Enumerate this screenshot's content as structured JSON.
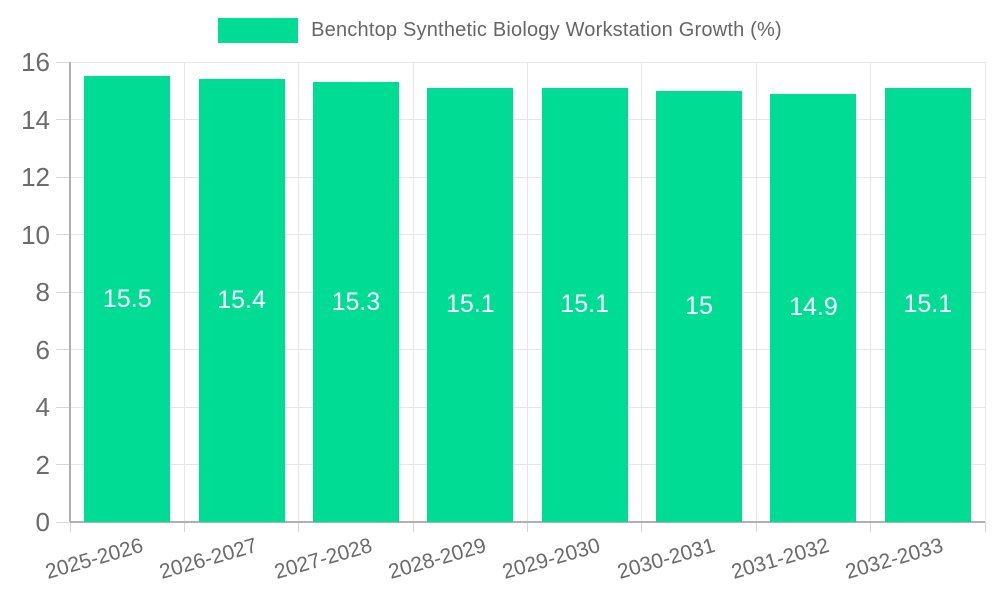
{
  "chart_data": {
    "type": "bar",
    "title": "",
    "legend": "Benchtop Synthetic Biology Workstation Growth (%)",
    "legend_position": "top",
    "categories": [
      "2025-2026",
      "2026-2027",
      "2027-2028",
      "2028-2029",
      "2029-2030",
      "2030-2031",
      "2031-2032",
      "2032-2033"
    ],
    "values": [
      15.5,
      15.4,
      15.3,
      15.1,
      15.1,
      15,
      14.9,
      15.1
    ],
    "value_labels": [
      "15.5",
      "15.4",
      "15.3",
      "15.1",
      "15.1",
      "15",
      "14.9",
      "15.1"
    ],
    "value_label_position": "inside-center",
    "xlabel": "",
    "ylabel": "",
    "ylim": [
      0,
      16
    ],
    "yticks": [
      0,
      2,
      4,
      6,
      8,
      10,
      12,
      14,
      16
    ],
    "ytick_labels": [
      "0",
      "2",
      "4",
      "6",
      "8",
      "10",
      "12",
      "14",
      "16"
    ],
    "grid": "on",
    "colors": {
      "bar": "#00DC94",
      "value_label": "#ffffff",
      "gridline": "#e6e6e6",
      "axis": "#b0b0b0",
      "tick": "#d6d6d6",
      "tick_label": "#6b6b6b",
      "legend_text": "#666666",
      "background": "#ffffff"
    }
  }
}
